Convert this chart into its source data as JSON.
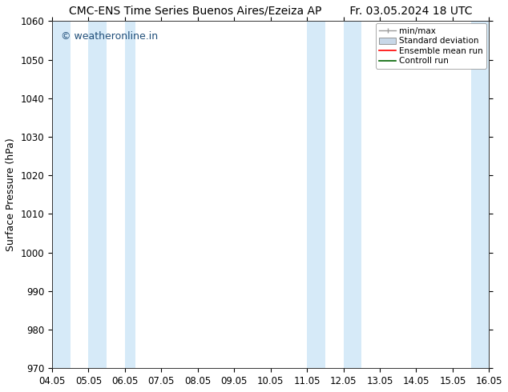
{
  "title": "CMC-ENS Time Series Buenos Aires/Ezeiza AP        Fr. 03.05.2024 18 UTC",
  "ylabel": "Surface Pressure (hPa)",
  "ylim": [
    970,
    1060
  ],
  "yticks": [
    970,
    980,
    990,
    1000,
    1010,
    1020,
    1030,
    1040,
    1050,
    1060
  ],
  "xlim_start": 4.05,
  "xlim_end": 16.05,
  "xtick_labels": [
    "04.05",
    "05.05",
    "06.05",
    "07.05",
    "08.05",
    "09.05",
    "10.05",
    "11.05",
    "12.05",
    "13.05",
    "14.05",
    "15.05",
    "16.05"
  ],
  "xtick_positions": [
    4.05,
    5.05,
    6.05,
    7.05,
    8.05,
    9.05,
    10.05,
    11.05,
    12.05,
    13.05,
    14.05,
    15.05,
    16.05
  ],
  "shaded_bands": [
    {
      "x_start": 4.05,
      "x_end": 4.55
    },
    {
      "x_start": 5.05,
      "x_end": 5.55
    },
    {
      "x_start": 6.05,
      "x_end": 6.35
    },
    {
      "x_start": 11.05,
      "x_end": 11.55
    },
    {
      "x_start": 12.05,
      "x_end": 12.55
    },
    {
      "x_start": 15.55,
      "x_end": 16.05
    }
  ],
  "band_color": "#d6eaf8",
  "background_color": "#ffffff",
  "watermark_text": "© weatheronline.in",
  "watermark_color": "#1f4e79",
  "legend_labels": [
    "min/max",
    "Standard deviation",
    "Ensemble mean run",
    "Controll run"
  ],
  "legend_colors_line": [
    "#999999",
    "#aaaaaa",
    "#ff0000",
    "#006400"
  ],
  "title_fontsize": 10,
  "axis_label_fontsize": 9,
  "tick_fontsize": 8.5,
  "watermark_fontsize": 9
}
